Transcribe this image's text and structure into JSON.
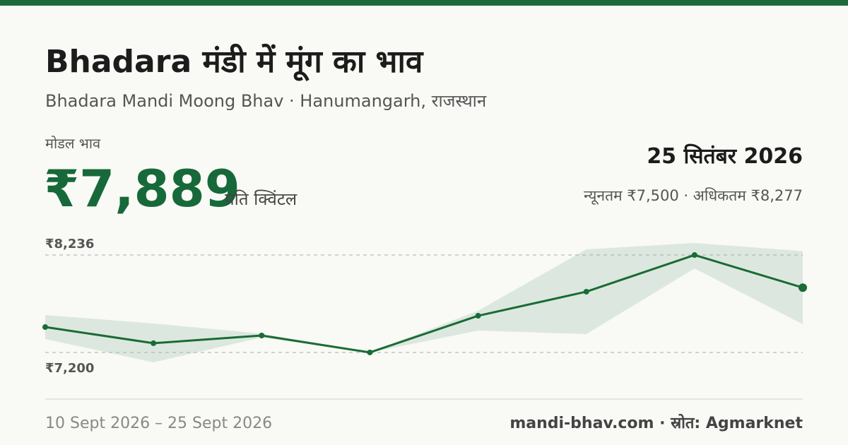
{
  "header": {
    "title": "Bhadara मंडी में मूंग का भाव",
    "subtitle": "Bhadara Mandi Moong Bhav · Hanumangarh, राजस्थान",
    "price_label": "मोडल भाव",
    "price": "₹7,889",
    "price_unit": "प्रति क्विंटल",
    "date": "25 सितंबर 2026",
    "range": "न्यूनतम ₹7,500 · अधिकतम ₹8,277"
  },
  "chart_data": {
    "type": "line",
    "categories": [
      null,
      null,
      null,
      null,
      null,
      null,
      null,
      null
    ],
    "values": [
      7470,
      7298,
      7380,
      7200,
      7590,
      7846,
      8236,
      7889
    ],
    "color": "#1a6b35",
    "band": {
      "low": [
        7343,
        7095,
        7360,
        7200,
        7433,
        7395,
        8093,
        7500
      ],
      "high": [
        7598,
        7508,
        7400,
        7200,
        7643,
        8296,
        8364,
        8277
      ],
      "color": "#dce8df"
    },
    "ylim": [
      7042,
      8394
    ],
    "yticks": [
      {
        "value": 8236,
        "label": "₹8,236"
      },
      {
        "value": 7200,
        "label": "₹7,200"
      }
    ],
    "grid": true
  },
  "footer": {
    "period": "10 Sept 2026 – 25 Sept 2026",
    "source": "mandi-bhav.com · स्रोत: Agmarknet"
  }
}
